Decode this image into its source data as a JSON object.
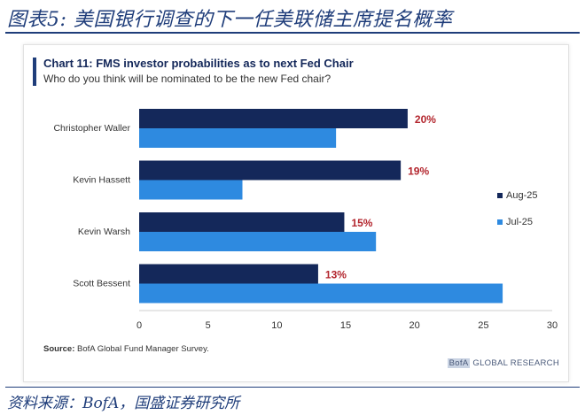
{
  "figure": {
    "title": "图表5:  美国银行调查的下一任美联储主席提名概率",
    "source_note": "资料来源：BofA，国盛证券研究所"
  },
  "panel": {
    "brand_box": "BofA",
    "brand_rest": " GLOBAL RESEARCH",
    "source_label": "Source:",
    "source_text": " BofA Global Fund Manager Survey."
  },
  "colors": {
    "series_aug": "#14285a",
    "series_jul": "#2e8ae0",
    "data_label": "#b3262e",
    "accent": "#1f3d7a"
  },
  "chart_data": {
    "type": "bar",
    "orientation": "horizontal",
    "title": "Chart 11: FMS investor probabilities as to next Fed Chair",
    "subtitle": "Who do you think will be nominated to be the new Fed chair?",
    "categories": [
      "Christopher Waller",
      "Kevin Hassett",
      "Kevin Warsh",
      "Scott Bessent"
    ],
    "series": [
      {
        "name": "Aug-25",
        "values": [
          19.5,
          19.0,
          14.9,
          13.0
        ],
        "labels": [
          "20%",
          "19%",
          "15%",
          "13%"
        ]
      },
      {
        "name": "Jul-25",
        "values": [
          14.3,
          7.5,
          17.2,
          26.4
        ]
      }
    ],
    "xlim": [
      0,
      30
    ],
    "xticks": [
      "0",
      "5",
      "10",
      "15",
      "20",
      "25",
      "30"
    ],
    "grid": false,
    "legend_position": "right"
  }
}
